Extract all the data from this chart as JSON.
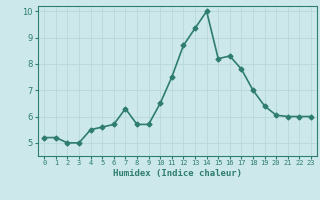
{
  "x": [
    0,
    1,
    2,
    3,
    4,
    5,
    6,
    7,
    8,
    9,
    10,
    11,
    12,
    13,
    14,
    15,
    16,
    17,
    18,
    19,
    20,
    21,
    22,
    23
  ],
  "y": [
    5.2,
    5.2,
    5.0,
    5.0,
    5.5,
    5.6,
    5.7,
    6.3,
    5.7,
    5.7,
    6.5,
    7.5,
    8.7,
    9.35,
    10.0,
    8.2,
    8.3,
    7.8,
    7.0,
    6.4,
    6.05,
    6.0,
    6.0,
    6.0
  ],
  "xlabel": "Humidex (Indice chaleur)",
  "ylim": [
    4.5,
    10.2
  ],
  "xlim": [
    -0.5,
    23.5
  ],
  "line_color": "#2e7d6e",
  "bg_color": "#cce8eb",
  "grid_color": "#b8d8db",
  "tick_color": "#2e7d6e",
  "label_color": "#2e7d6e",
  "marker": "D",
  "marker_size": 2.5,
  "line_width": 1.2
}
